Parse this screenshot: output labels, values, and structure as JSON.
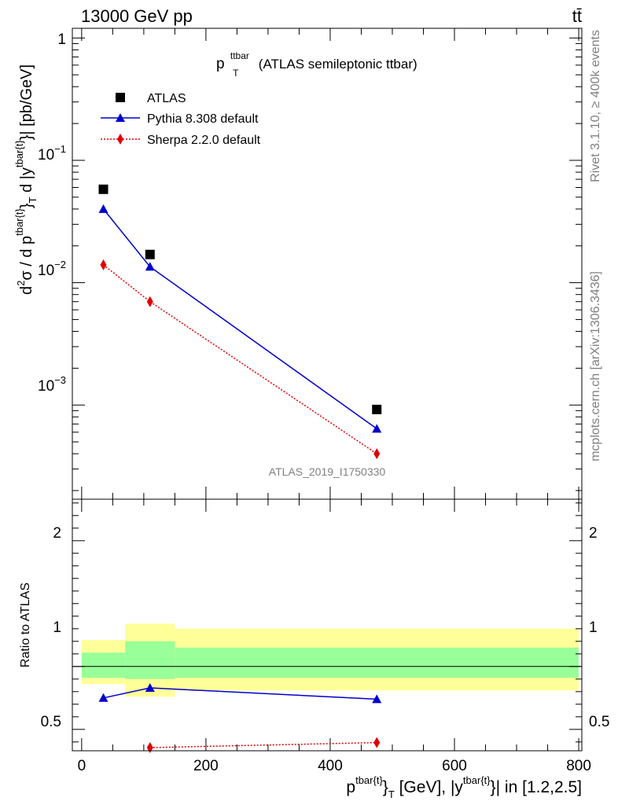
{
  "header": {
    "left": "13000 GeV pp",
    "right": "tt̄"
  },
  "side_texts": {
    "rivet": "Rivet 3.1.10, ≥ 400k events",
    "mcplots": "mcplots.cern.ch [arXiv:1306.3436]"
  },
  "chart_data": [
    {
      "type": "scatter",
      "panel": "main",
      "title_main": "p",
      "title_sup": "ttbar",
      "title_sub": "T",
      "title_rest": " (ATLAS semileptonic ttbar)",
      "ylabel": "d²σ / d p^{tbar{t}}_T d |y^{tbar{t}}| [pb/GeV]",
      "ylabel_parts": {
        "d": "d",
        "sup2": "2",
        "sigma_d_p": "σ /  d p",
        "sup_a": "tbar{t}",
        "close_a": "}",
        "sub_t": "T",
        "d_abs_y": " d |y",
        "sup_b": "tbar{t}",
        "close_b": "}| [pb/GeV]"
      },
      "yscale": "log",
      "ylim": [
        0.00017,
        1.2
      ],
      "xlim": [
        -15,
        805
      ],
      "ytick_labels": [
        {
          "base": "1",
          "exp": ""
        },
        {
          "base": "10",
          "exp": "−1"
        },
        {
          "base": "10",
          "exp": "−2"
        },
        {
          "base": "10",
          "exp": "−3"
        }
      ],
      "legend_placement": "top-left",
      "watermark": "ATLAS_2019_I1750330",
      "series": [
        {
          "name": "ATLAS",
          "color": "#000000",
          "marker": "square",
          "line": "none",
          "x": [
            35,
            110,
            475
          ],
          "y": [
            0.058,
            0.017,
            0.00092
          ]
        },
        {
          "name": "Pythia 8.308 default",
          "color": "#0000cc",
          "marker": "triangle",
          "line": "solid",
          "x": [
            35,
            110,
            475
          ],
          "y": [
            0.04,
            0.0135,
            0.00064
          ]
        },
        {
          "name": "Sherpa 2.2.0 default",
          "color": "#e00000",
          "marker": "diamond",
          "line": "dotted",
          "x": [
            35,
            110,
            475
          ],
          "y": [
            0.014,
            0.007,
            0.0004
          ]
        }
      ]
    },
    {
      "type": "scatter",
      "panel": "ratio",
      "ylabel": "Ratio to ATLAS",
      "ylim": [
        0.33,
        2.33
      ],
      "xlim": [
        -15,
        805
      ],
      "ytick_labels": [
        "0.5",
        "1",
        "2"
      ],
      "xtick_labels": [
        "0",
        "200",
        "400",
        "600",
        "800"
      ],
      "xlabel_parts": {
        "p": "p",
        "sup_a": "tbar{t}",
        "close_a": "}",
        "sub_t": "T",
        "mid": " [GeV], |y",
        "sup_b": "tbar{t}",
        "close_b": "}| in [1.2,2.5]"
      },
      "bands": [
        {
          "x": [
            0,
            70
          ],
          "inner": [
            0.91,
            1.11
          ],
          "outer": [
            0.86,
            1.21
          ]
        },
        {
          "x": [
            70,
            150
          ],
          "inner": [
            0.9,
            1.2
          ],
          "outer": [
            0.76,
            1.34
          ]
        },
        {
          "x": [
            150,
            800
          ],
          "inner": [
            0.91,
            1.15
          ],
          "outer": [
            0.81,
            1.3
          ]
        }
      ],
      "band_colors": {
        "inner": "#99ff99",
        "outer": "#ffff99"
      },
      "series": [
        {
          "name": "Pythia 8.308 default",
          "color": "#0000cc",
          "marker": "triangle",
          "line": "solid",
          "x": [
            35,
            110,
            475
          ],
          "y": [
            0.75,
            0.83,
            0.74
          ]
        },
        {
          "name": "Sherpa 2.2.0 default",
          "color": "#e00000",
          "marker": "diamond",
          "line": "dotted",
          "x": [
            110,
            475
          ],
          "y": [
            0.355,
            0.395
          ]
        }
      ]
    }
  ]
}
